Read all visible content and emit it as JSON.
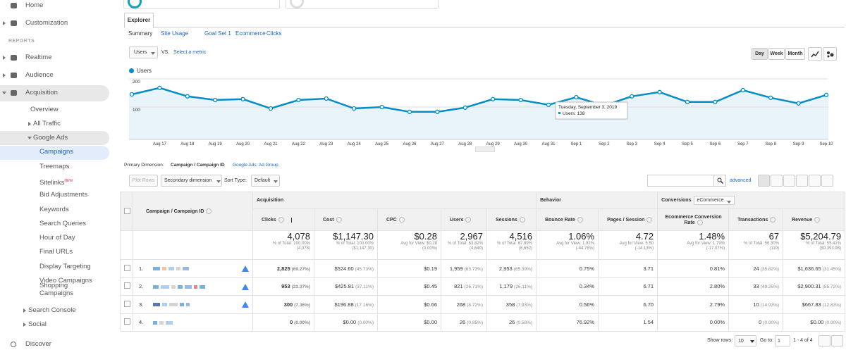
{
  "sidebar": {
    "items": [
      "Home",
      "Customization",
      "REPORTS",
      "Realtime",
      "Audience",
      "Acquisition",
      "Overview",
      "All Traffic",
      "Google Ads",
      "Campaigns",
      "Treemaps",
      "Sitelinks",
      "Bid Adjustments",
      "Keywords",
      "Search Queries",
      "Hour of Day",
      "Final URLs",
      "Display Targeting",
      "Video Campaigns",
      "Shopping Campaigns",
      "Search Console",
      "Social",
      "Discover"
    ],
    "new_badge": "NEW"
  },
  "tabs": {
    "explorer": "Explorer",
    "subtabs": [
      "Summary",
      "Site Usage",
      "Goal Set 1",
      "Ecommerce",
      "Clicks"
    ]
  },
  "metric": {
    "primary": "Users",
    "vs": "VS.",
    "select": "Select a metric"
  },
  "periods": [
    "Day",
    "Week",
    "Month"
  ],
  "chart_data": {
    "type": "line",
    "categories": [
      null,
      "Aug 17",
      "Aug 18",
      "Aug 19",
      "Aug 20",
      "Aug 21",
      "Aug 22",
      "Aug 23",
      "Aug 24",
      "Aug 25",
      "Aug 26",
      "Aug 27",
      "Aug 28",
      "Aug 29",
      "Aug 30",
      "Aug 31",
      "Sep 1",
      "Sep 2",
      "Sep 3",
      "Sep 4",
      "Sep 5",
      "Sep 6",
      "Sep 7",
      "Sep 8",
      "Sep 9",
      "Sep 10"
    ],
    "series": [
      {
        "name": "Users",
        "color": "#058dc7",
        "values": [
          145,
          168,
          138,
          125,
          128,
          95,
          125,
          130,
          95,
          100,
          83,
          83,
          98,
          128,
          125,
          108,
          135,
          105,
          138,
          153,
          118,
          118,
          160,
          133,
          113,
          143
        ]
      }
    ],
    "ylim": [
      0,
      200
    ],
    "yticks": [
      100,
      200
    ],
    "grid": true,
    "tooltip": {
      "title": "Tuesday, September 3, 2019",
      "label": "Users: 138"
    }
  },
  "dimension": {
    "label": "Primary Dimension:",
    "active": "Campaign / Campaign ID",
    "other": "Google Ads: Ad Group"
  },
  "controls": {
    "plot_rows": "Plot Rows",
    "secondary": "Secondary dimension",
    "sort_label": "Sort Type:",
    "sort": "Default",
    "advanced": "advanced"
  },
  "table": {
    "groups": [
      "Acquisition",
      "Behavior",
      "Conversions"
    ],
    "conversions_select": "eCommerce",
    "dimension_header": "Campaign / Campaign ID",
    "columns": [
      "Clicks",
      "Cost",
      "CPC",
      "Users",
      "Sessions",
      "Bounce Rate",
      "Pages / Session",
      "Ecommerce Conversion Rate",
      "Transactions",
      "Revenue"
    ],
    "totals": [
      [
        "4,078",
        "% of Total: 100.00%",
        "(4,078)"
      ],
      [
        "$1,147.30",
        "% of Total: 100.00%",
        "($1,147.30)"
      ],
      [
        "$0.28",
        "Avg for View: $0.28",
        "(0.00%)"
      ],
      [
        "2,967",
        "% of Total: 63.82%",
        "(4,649)"
      ],
      [
        "4,516",
        "% of Total: 67.89%",
        "(6,652)"
      ],
      [
        "1.06%",
        "Avg for View: 1.92%",
        "(-44.76%)"
      ],
      [
        "4.72",
        "Avg for View: 5.50",
        "(-14.13%)"
      ],
      [
        "1.48%",
        "Avg for View: 1.79%",
        "(-17.07%)"
      ],
      [
        "67",
        "% of Total: 56.30%",
        "(119)"
      ],
      [
        "$5,204.79",
        "% of Total: 55.41%",
        "($9,393.98)"
      ]
    ],
    "rows": [
      {
        "index": "1.",
        "cells": [
          [
            "2,825",
            "(69.27%)"
          ],
          [
            "$524.60",
            "(45.73%)"
          ],
          [
            "$0.19"
          ],
          [
            "1,959",
            "(63.73%)"
          ],
          [
            "2,953",
            "(65.39%)"
          ],
          [
            "0.75%"
          ],
          [
            "3.71"
          ],
          [
            "0.81%"
          ],
          [
            "24",
            "(35.82%)"
          ],
          [
            "$1,636.65",
            "(31.45%)"
          ]
        ]
      },
      {
        "index": "2.",
        "cells": [
          [
            "953",
            "(23.37%)"
          ],
          [
            "$425.81",
            "(37.11%)"
          ],
          [
            "$0.45"
          ],
          [
            "821",
            "(26.71%)"
          ],
          [
            "1,179",
            "(26.11%)"
          ],
          [
            "0.34%"
          ],
          [
            "6.71"
          ],
          [
            "2.80%"
          ],
          [
            "33",
            "(49.25%)"
          ],
          [
            "$2,900.31",
            "(55.72%)"
          ]
        ]
      },
      {
        "index": "3.",
        "cells": [
          [
            "300",
            "(7.36%)"
          ],
          [
            "$196.88",
            "(17.16%)"
          ],
          [
            "$0.66"
          ],
          [
            "268",
            "(8.72%)"
          ],
          [
            "358",
            "(7.93%)"
          ],
          [
            "0.56%"
          ],
          [
            "6.70"
          ],
          [
            "2.79%"
          ],
          [
            "10",
            "(14.93%)"
          ],
          [
            "$667.83",
            "(12.83%)"
          ]
        ]
      },
      {
        "index": "4.",
        "cells": [
          [
            "0",
            "(0.00%)"
          ],
          [
            "$0.00",
            "(0.00%)"
          ],
          [
            "$0.00"
          ],
          [
            "26",
            "(0.85%)"
          ],
          [
            "26",
            "(0.58%)"
          ],
          [
            "76.92%"
          ],
          [
            "1.54"
          ],
          [
            "0.00%"
          ],
          [
            "0",
            "(0.00%)"
          ],
          [
            "$0.00",
            "(0.00%)"
          ]
        ]
      }
    ]
  },
  "footer": {
    "show_rows": "Show rows:",
    "rows_value": "10",
    "goto": "Go to:",
    "goto_value": "1",
    "range": "1 - 4 of 4"
  }
}
